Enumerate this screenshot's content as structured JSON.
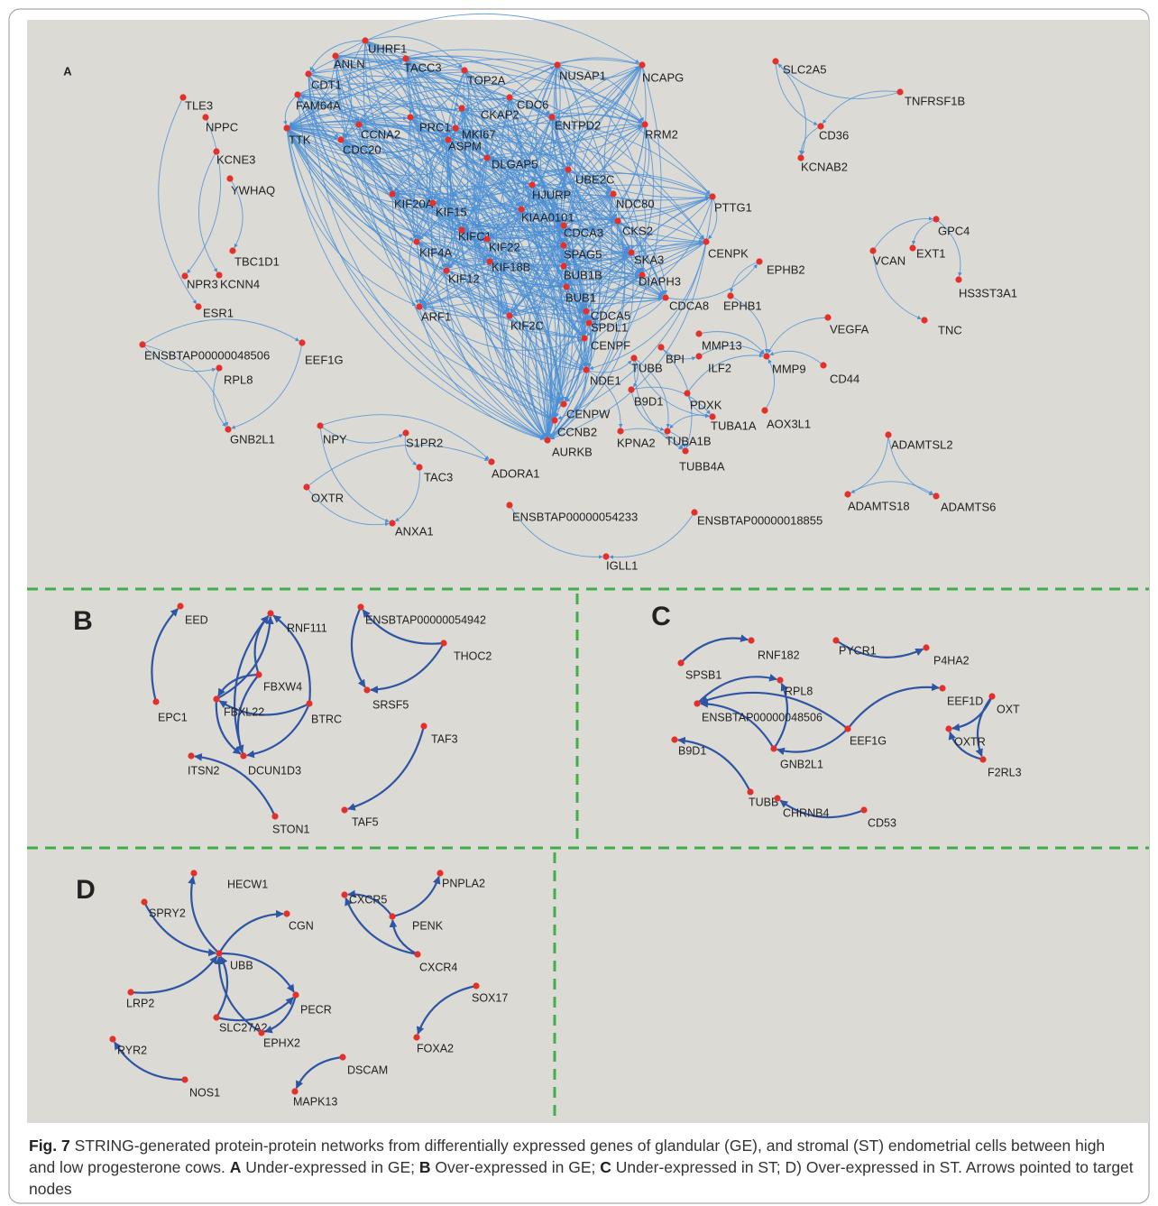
{
  "panels": [
    {
      "letter": "A",
      "nodes": [
        "UHRF1",
        "ANLN",
        "TACC3",
        "TOP2A",
        "NUSAP1",
        "NCAPG",
        "CDT1",
        "FAM64A",
        "TLE3",
        "NPPC",
        "CDC6",
        "CKAP2",
        "PRC1",
        "ENTPD2",
        "TTK",
        "CCNA2",
        "MKI67",
        "RRM2",
        "ASPM",
        "CD36",
        "CDC20",
        "KCNE3",
        "DLGAP5",
        "UBE2C",
        "YWHAQ",
        "KCNAB2",
        "SLC2A5",
        "TNFRSF1B",
        "HJURP",
        "NDC80",
        "PTTG1",
        "KIF20A",
        "KIF15",
        "KIAA0101",
        "CKS2",
        "CDCA3",
        "CENPK",
        "KIFC1",
        "KIF22",
        "KIF4A",
        "SPAG5",
        "SKA3",
        "KIF18B",
        "BUB1B",
        "DIAPH3",
        "KIF12",
        "TBC1D1",
        "NPR3",
        "KCNN4",
        "BUB1",
        "CDCA8",
        "ESR1",
        "ARF1",
        "KIF2C",
        "CDCA5",
        "SPDL1",
        "CENPF",
        "EPHB2",
        "EPHB1",
        "VEGFA",
        "MMP13",
        "BPI",
        "ILF2",
        "TUBB",
        "CD44",
        "MMP9",
        "NDE1",
        "B9D1",
        "PDXK",
        "AOX3L1",
        "TUBA1A",
        "CENPW",
        "CCNB2",
        "TUBA1B",
        "KPNA2",
        "AURKB",
        "TUBB4A",
        "VCAN",
        "GPC4",
        "EXT1",
        "HS3ST3A1",
        "TNC",
        "ENSBTAP00000048506",
        "EEF1G",
        "RPL8",
        "GNB2L1",
        "NPY",
        "S1PR2",
        "TAC3",
        "ADORA1",
        "OXTR",
        "ANXA1",
        "ADAMTSL2",
        "ADAMTS18",
        "ADAMTS6",
        "ENSBTAP00000054233",
        "ENSBTAP00000018855",
        "IGLL1"
      ]
    },
    {
      "letter": "B",
      "nodes": [
        "EED",
        "RNF111",
        "ENSBTAP00000054942",
        "THOC2",
        "FBXW4",
        "EPC1",
        "FBXL22",
        "BTRC",
        "SRSF5",
        "TAF3",
        "ITSN2",
        "DCUN1D3",
        "STON1",
        "TAF5"
      ]
    },
    {
      "letter": "C",
      "nodes": [
        "RNF182",
        "PYCR1",
        "P4HA2",
        "SPSB1",
        "RPL8",
        "ENSBTAP00000048506",
        "EEF1D",
        "OXT",
        "EEF1G",
        "OXTR",
        "B9D1",
        "GNB2L1",
        "F2RL3",
        "TUBB",
        "CHRNB4",
        "CD53"
      ]
    },
    {
      "letter": "D",
      "nodes": [
        "HECW1",
        "PNPLA2",
        "CXCR5",
        "SPRY2",
        "CGN",
        "PENK",
        "UBB",
        "CXCR4",
        "SOX17",
        "LRP2",
        "PECR",
        "SLC27A2",
        "FOXA2",
        "EPHX2",
        "RYR2",
        "DSCAM",
        "NOS1",
        "MAPK13"
      ]
    }
  ],
  "caption": [
    {
      "text": "Fig. 7",
      "bold": true
    },
    {
      "text": "STRING-generated protein-protein networks from differentially expressed genes of glandular (GE), and stromal (ST) endometrial cells between high and low progesterone cows."
    },
    {
      "text": "A",
      "bold": true
    },
    {
      "text": "Under-expressed in GE;"
    },
    {
      "text": "B",
      "bold": true
    },
    {
      "text": "Over-expressed in GE;"
    },
    {
      "text": "C",
      "bold": true
    },
    {
      "text": "Under-expressed in ST; D) Over-expressed in ST. Arrows pointed to target nodes"
    }
  ]
}
